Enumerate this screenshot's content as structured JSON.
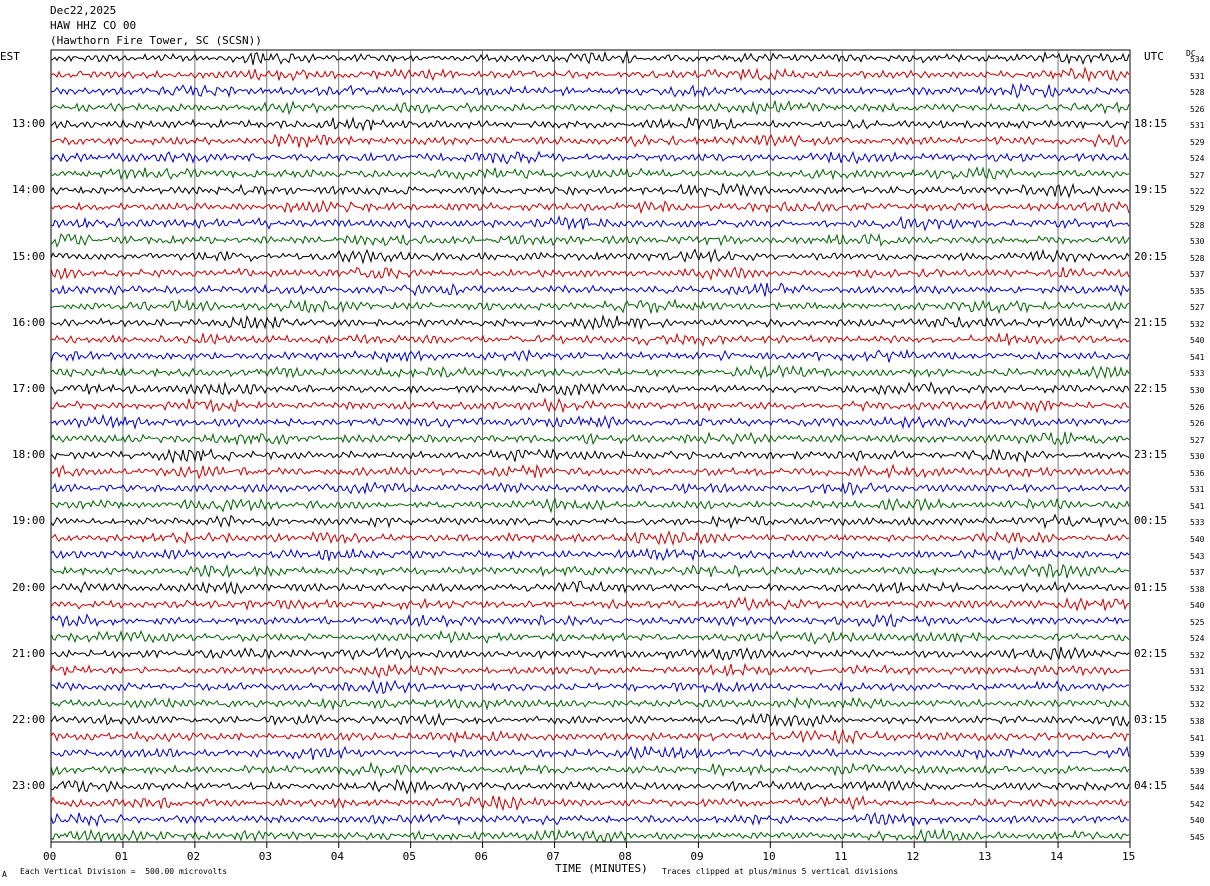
{
  "header": {
    "date": "Dec22,2025",
    "station": "HAW HHZ CO 00",
    "location": "(Hawthorn Fire Tower, SC (SCSN))"
  },
  "axes": {
    "left_label": "EST",
    "right_label": "UTC",
    "dc_label": "DC",
    "x_title": "TIME (MINUTES)",
    "footer_left": "Each Vertical Division =  500.00 microvolts",
    "footer_right": "Traces clipped at plus/minus 5 vertical divisions",
    "corner_mark": "A"
  },
  "chart_data": {
    "type": "line",
    "title": "",
    "xlabel": "TIME (MINUTES)",
    "xlim": [
      0,
      15
    ],
    "x_ticks": [
      "00",
      "01",
      "02",
      "03",
      "04",
      "05",
      "06",
      "07",
      "08",
      "09",
      "10",
      "11",
      "12",
      "13",
      "14",
      "15"
    ],
    "est_hour_labels": [
      "13:00",
      "14:00",
      "15:00",
      "16:00",
      "17:00",
      "18:00",
      "19:00",
      "20:00",
      "21:00",
      "22:00",
      "23:00"
    ],
    "utc_hour_labels": [
      "18:15",
      "19:15",
      "20:15",
      "21:15",
      "22:15",
      "23:15",
      "00:15",
      "01:15",
      "02:15",
      "03:15",
      "04:15"
    ],
    "trace_count": 48,
    "trace_colors": [
      "#000000",
      "#cc0000",
      "#0000cc",
      "#006600"
    ],
    "dc_offsets": [
      534,
      531,
      528,
      526,
      531,
      529,
      524,
      527,
      522,
      529,
      528,
      530,
      528,
      537,
      535,
      527,
      532,
      540,
      541,
      533,
      530,
      526,
      526,
      527,
      530,
      536,
      531,
      541,
      533,
      540,
      543,
      537,
      538,
      540,
      525,
      524,
      532,
      531,
      532,
      532,
      538,
      541,
      539,
      539,
      544,
      542,
      540,
      545
    ]
  }
}
